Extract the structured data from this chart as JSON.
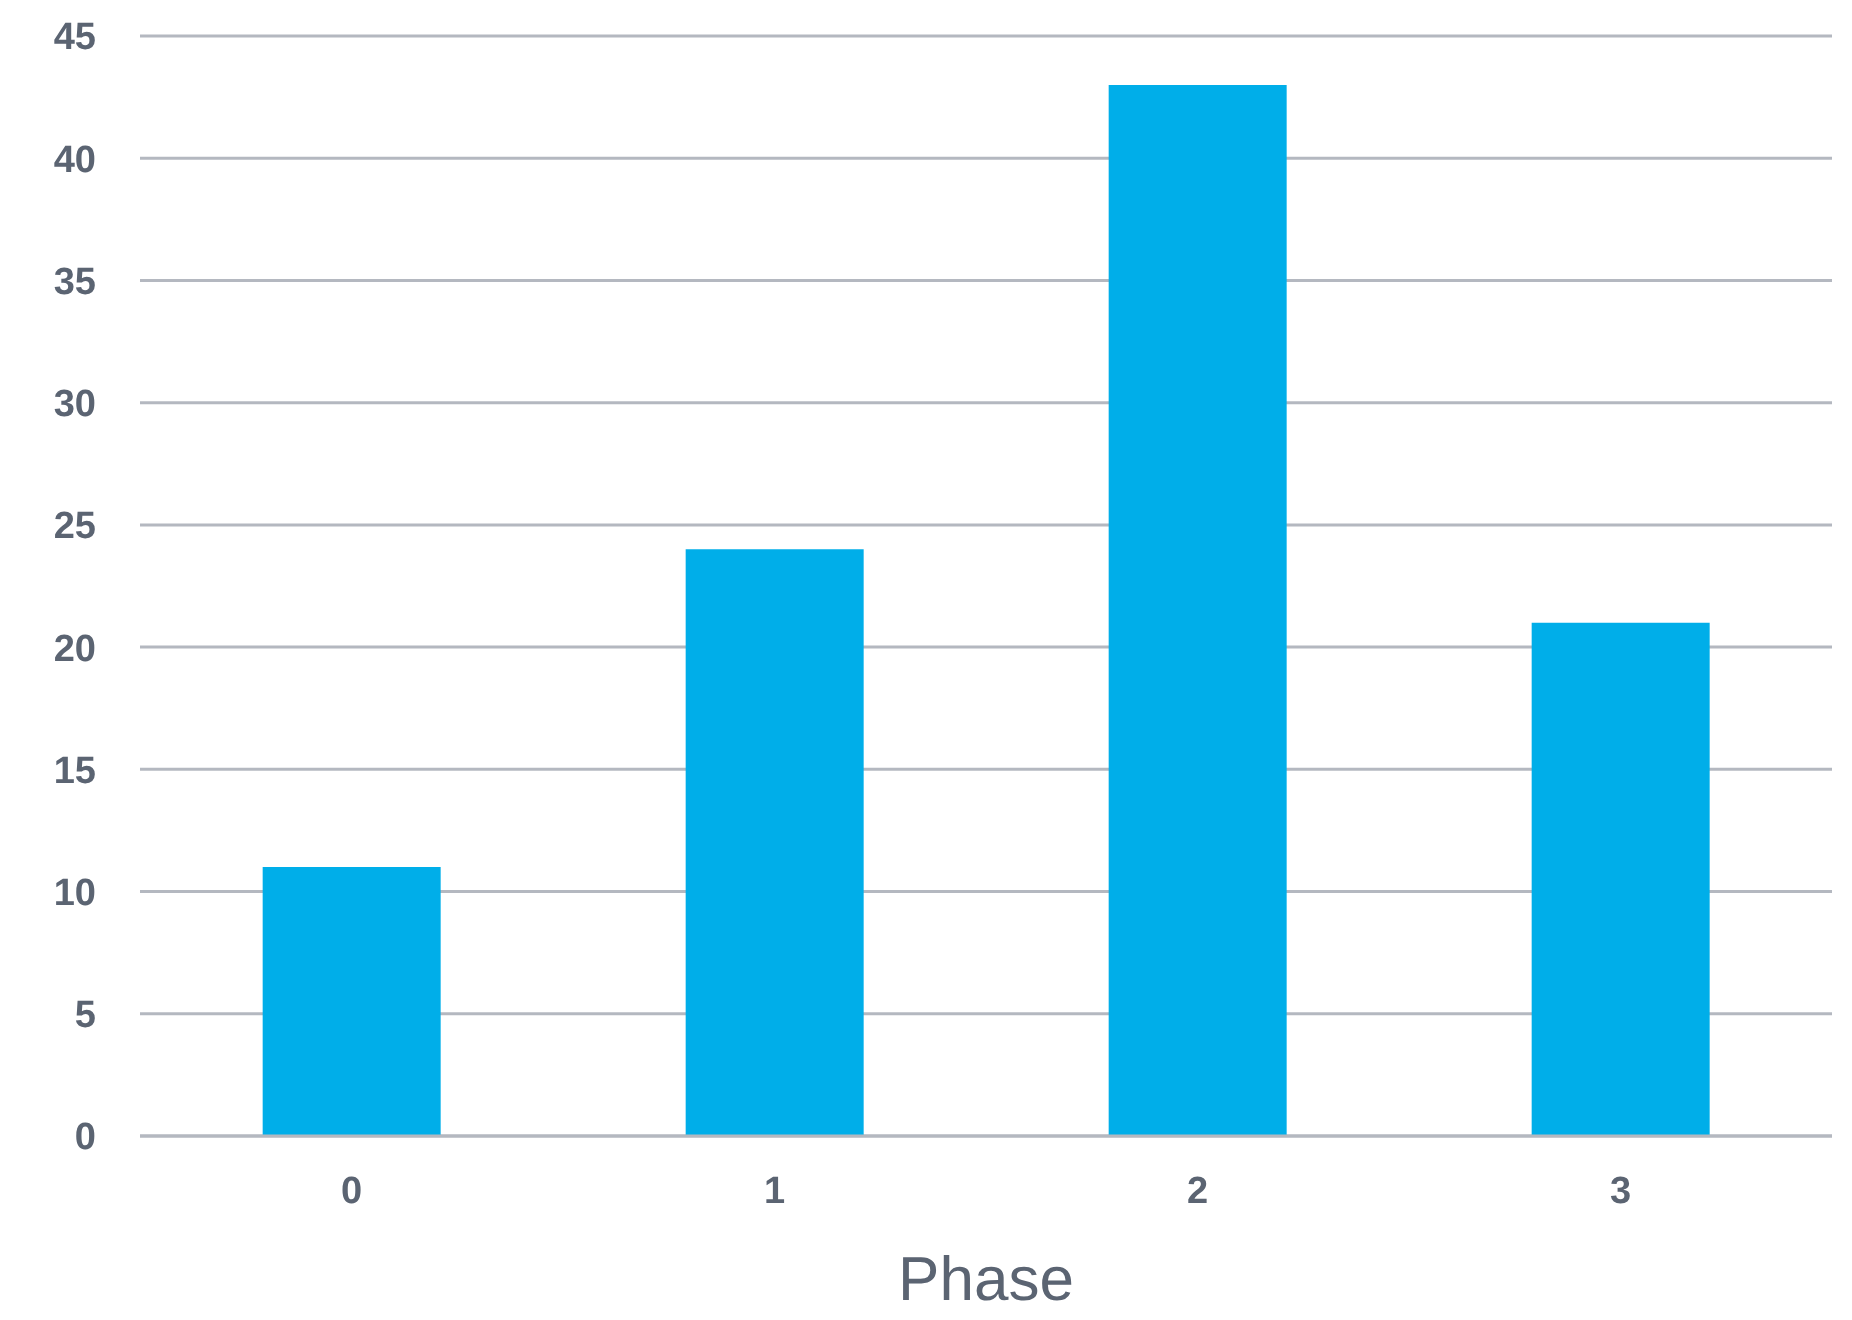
{
  "chart_data": {
    "type": "bar",
    "xlabel": "Phase",
    "categories": [
      "0",
      "1",
      "2",
      "3"
    ],
    "series": [
      {
        "color": "#00aee9",
        "values": [
          11,
          24,
          43,
          21
        ]
      }
    ],
    "ylim": [
      0,
      45
    ],
    "yticks": [
      0,
      5,
      10,
      15,
      20,
      25,
      30,
      35,
      40,
      45
    ],
    "grid": "y",
    "legend": false
  }
}
